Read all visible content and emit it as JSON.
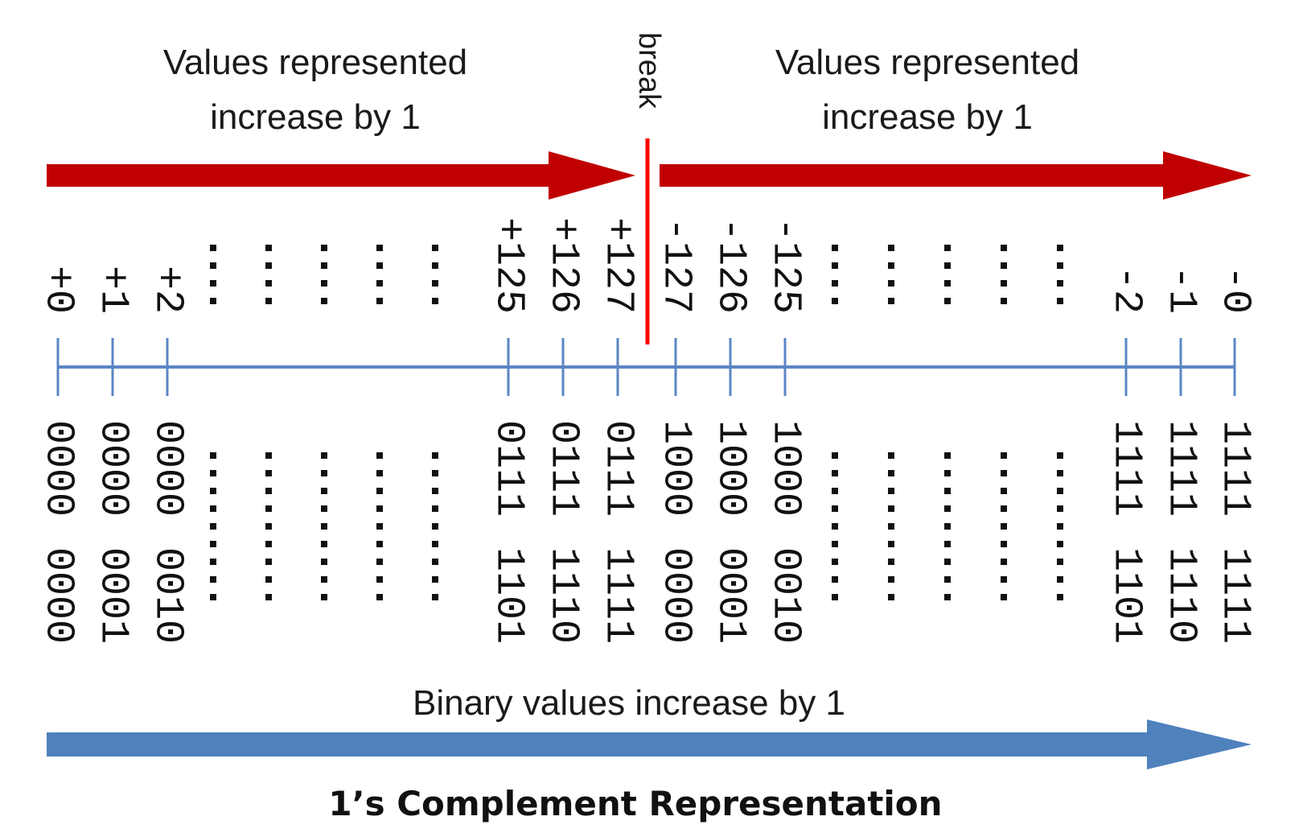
{
  "diagram": {
    "title": "1’s Complement Representation",
    "top_caption_left": [
      "Values represented",
      "increase by 1"
    ],
    "top_caption_right": [
      "Values represented",
      "increase by 1"
    ],
    "break_label": "break",
    "bottom_caption": "Binary values increase by 1",
    "colors": {
      "top_arrow": "#c00000",
      "break_line": "#ff0000",
      "number_line": "#5b86c5",
      "bottom_arrow": "#4f81bd",
      "text": "#111111"
    },
    "columns": [
      {
        "value": "+0",
        "high": "0000",
        "low": "0000",
        "kind": "tick"
      },
      {
        "value": "+1",
        "high": "0000",
        "low": "0001",
        "kind": "tick"
      },
      {
        "value": "+2",
        "high": "0000",
        "low": "0010",
        "kind": "tick"
      },
      {
        "kind": "ellipsis"
      },
      {
        "kind": "ellipsis"
      },
      {
        "kind": "ellipsis"
      },
      {
        "kind": "ellipsis"
      },
      {
        "kind": "ellipsis"
      },
      {
        "value": "+125",
        "high": "0111",
        "low": "1101",
        "kind": "tick"
      },
      {
        "value": "+126",
        "high": "0111",
        "low": "1110",
        "kind": "tick"
      },
      {
        "value": "+127",
        "high": "0111",
        "low": "1111",
        "kind": "tick"
      },
      {
        "value": "-127",
        "high": "1000",
        "low": "0000",
        "kind": "tick"
      },
      {
        "value": "-126",
        "high": "1000",
        "low": "0001",
        "kind": "tick"
      },
      {
        "value": "-125",
        "high": "1000",
        "low": "0010",
        "kind": "tick"
      },
      {
        "kind": "ellipsis"
      },
      {
        "kind": "ellipsis"
      },
      {
        "kind": "ellipsis"
      },
      {
        "kind": "ellipsis"
      },
      {
        "kind": "ellipsis"
      },
      {
        "value": "-2",
        "high": "1111",
        "low": "1101",
        "kind": "tick"
      },
      {
        "value": "-1",
        "high": "1111",
        "low": "1110",
        "kind": "tick"
      },
      {
        "value": "-0",
        "high": "1111",
        "low": "1111",
        "kind": "tick"
      }
    ]
  }
}
